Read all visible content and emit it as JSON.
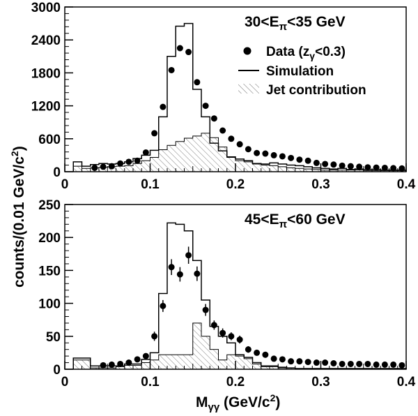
{
  "chart_data": [
    {
      "type": "line",
      "panel_label": {
        "pre": "30<E",
        "sub": "π",
        "post": "<35 GeV"
      },
      "xlabel": {
        "main": "M",
        "sub": "γγ",
        "post": " (GeV/c",
        "sup": "2",
        "end": ")"
      },
      "ylabel": {
        "main": "counts/(0.01 GeV/c",
        "sup": "2",
        "end": ")"
      },
      "xlim": [
        0,
        0.4
      ],
      "ylim": [
        0,
        3000
      ],
      "xticks": [
        "0",
        "0.1",
        "0.2",
        "0.3",
        "0.4"
      ],
      "yticks": [
        "0",
        "600",
        "1200",
        "1800",
        "2400",
        "3000"
      ],
      "legend": {
        "data": {
          "pre": "Data (z",
          "sub": "γ",
          "post": "<0.3)"
        },
        "simulation": "Simulation",
        "jet": "Jet contribution"
      },
      "bin_edges": [
        0.01,
        0.02,
        0.03,
        0.04,
        0.05,
        0.06,
        0.07,
        0.08,
        0.09,
        0.1,
        0.11,
        0.12,
        0.13,
        0.14,
        0.15,
        0.16,
        0.17,
        0.18,
        0.19,
        0.2,
        0.21,
        0.22,
        0.23,
        0.24,
        0.25,
        0.26,
        0.27,
        0.28,
        0.29,
        0.3,
        0.31,
        0.32,
        0.33,
        0.34,
        0.35,
        0.36,
        0.37,
        0.38,
        0.39,
        0.4
      ],
      "simulation": [
        180,
        100,
        130,
        150,
        140,
        150,
        180,
        240,
        300,
        390,
        1000,
        2100,
        2650,
        2700,
        1500,
        1000,
        520,
        380,
        270,
        230,
        200,
        150,
        140,
        160,
        140,
        120,
        110,
        90,
        70,
        60,
        50,
        60,
        40,
        50,
        40,
        40,
        30,
        30,
        30
      ],
      "jet_contribution": [
        100,
        60,
        70,
        80,
        90,
        100,
        110,
        150,
        200,
        260,
        400,
        480,
        550,
        610,
        650,
        700,
        620,
        450,
        260,
        200,
        180,
        140,
        120,
        110,
        90,
        70,
        60,
        50,
        40,
        30,
        30,
        30,
        30,
        30,
        20,
        20,
        20,
        20,
        20
      ],
      "data_points": {
        "x": [
          0.035,
          0.045,
          0.055,
          0.065,
          0.075,
          0.085,
          0.095,
          0.105,
          0.115,
          0.125,
          0.135,
          0.145,
          0.155,
          0.165,
          0.175,
          0.185,
          0.195,
          0.205,
          0.215,
          0.225,
          0.235,
          0.245,
          0.255,
          0.265,
          0.275,
          0.285,
          0.295,
          0.305,
          0.315,
          0.325,
          0.335,
          0.345,
          0.355,
          0.365,
          0.375,
          0.385,
          0.395
        ],
        "y": [
          70,
          90,
          100,
          150,
          180,
          200,
          350,
          700,
          1180,
          1850,
          2250,
          2180,
          1630,
          1200,
          970,
          750,
          600,
          500,
          410,
          340,
          330,
          300,
          280,
          250,
          220,
          200,
          160,
          140,
          130,
          110,
          100,
          90,
          80,
          75,
          70,
          65,
          60
        ],
        "err": [
          0,
          0,
          0,
          0,
          0,
          0,
          0,
          0,
          0,
          0,
          0,
          0,
          0,
          0,
          0,
          0,
          0,
          0,
          0,
          0,
          0,
          0,
          0,
          0,
          0,
          0,
          0,
          0,
          0,
          0,
          0,
          0,
          0,
          0,
          0,
          0,
          0
        ]
      }
    },
    {
      "type": "line",
      "panel_label": {
        "pre": "45<E",
        "sub": "π",
        "post": "<60 GeV"
      },
      "xlim": [
        0,
        0.4
      ],
      "ylim": [
        0,
        250
      ],
      "xticks": [
        "0",
        "0.1",
        "0.2",
        "0.3",
        "0.4"
      ],
      "yticks": [
        "0",
        "50",
        "100",
        "150",
        "200",
        "250"
      ],
      "bin_edges": [
        0.01,
        0.02,
        0.03,
        0.04,
        0.05,
        0.06,
        0.07,
        0.08,
        0.09,
        0.1,
        0.11,
        0.12,
        0.13,
        0.14,
        0.15,
        0.16,
        0.17,
        0.18,
        0.19,
        0.2,
        0.21,
        0.22,
        0.23,
        0.24,
        0.25,
        0.26,
        0.27,
        0.28,
        0.29,
        0.3,
        0.31,
        0.32,
        0.33,
        0.34,
        0.35,
        0.36,
        0.37,
        0.38,
        0.39,
        0.4
      ],
      "simulation": [
        17,
        17,
        5,
        5,
        5,
        5,
        8,
        8,
        15,
        25,
        115,
        222,
        220,
        210,
        165,
        105,
        65,
        50,
        40,
        22,
        18,
        10,
        5,
        5,
        3,
        2,
        1,
        1,
        1,
        1,
        1,
        1,
        1,
        1,
        1,
        1,
        1,
        1,
        1
      ],
      "jet_contribution": [
        14,
        14,
        2,
        2,
        2,
        4,
        6,
        6,
        10,
        14,
        22,
        22,
        22,
        22,
        70,
        50,
        30,
        14,
        22,
        20,
        16,
        8,
        4,
        4,
        2,
        2,
        1,
        1,
        1,
        1,
        1,
        1,
        1,
        1,
        1,
        1,
        1,
        1,
        1
      ],
      "data_points": {
        "x": [
          0.045,
          0.055,
          0.065,
          0.075,
          0.085,
          0.095,
          0.105,
          0.115,
          0.125,
          0.135,
          0.145,
          0.155,
          0.165,
          0.175,
          0.185,
          0.195,
          0.205,
          0.215,
          0.225,
          0.235,
          0.245,
          0.255,
          0.265,
          0.275,
          0.285,
          0.295,
          0.305,
          0.315,
          0.325,
          0.335,
          0.345,
          0.355,
          0.365,
          0.375,
          0.385,
          0.395
        ],
        "y": [
          6,
          7,
          8,
          10,
          15,
          20,
          50,
          96,
          155,
          144,
          173,
          145,
          90,
          67,
          55,
          50,
          45,
          30,
          25,
          22,
          16,
          15,
          12,
          12,
          11,
          10,
          10,
          9,
          8,
          8,
          8,
          8,
          7,
          7,
          7,
          6
        ],
        "err": [
          0,
          0,
          0,
          0,
          0,
          0,
          7,
          9,
          12,
          11,
          13,
          11,
          9,
          7,
          7,
          6,
          6,
          5,
          4,
          4,
          3,
          3,
          3,
          3,
          3,
          3,
          3,
          3,
          2,
          2,
          2,
          2,
          2,
          2,
          2,
          2
        ]
      }
    }
  ]
}
